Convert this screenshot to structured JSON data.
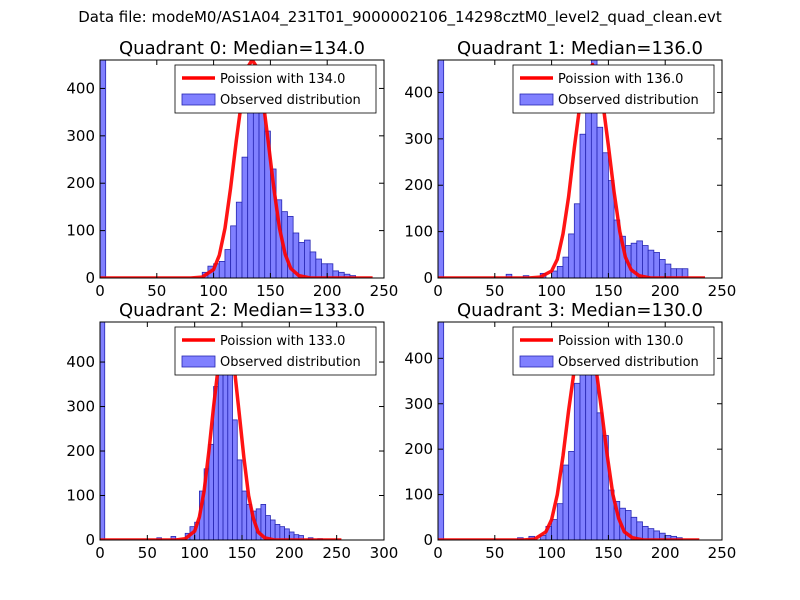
{
  "figure": {
    "title": "Data file: modeM0/AS1A04_231T01_9000002106_14298cztM0_level2_quad_clean.evt"
  },
  "colors": {
    "hist_fill": "#8080ff",
    "hist_edge": "#2626b3",
    "poisson_line": "#ff0000",
    "poisson_line_light": "#f4a0a0"
  },
  "chart_data": [
    {
      "type": "bar",
      "title": "Quadrant 0: Median=134.0",
      "median": 134.0,
      "legend": [
        "Poission with 134.0",
        "Observed distribution"
      ],
      "xlim": [
        0,
        250
      ],
      "ylim": [
        0,
        460
      ],
      "xticks": [
        0,
        50,
        100,
        150,
        200,
        250
      ],
      "yticks": [
        0,
        100,
        200,
        300,
        400
      ],
      "bin_width": 5,
      "bins": [
        [
          0,
          460
        ],
        [
          90,
          12
        ],
        [
          95,
          25
        ],
        [
          100,
          30
        ],
        [
          105,
          35
        ],
        [
          110,
          60
        ],
        [
          115,
          110
        ],
        [
          120,
          160
        ],
        [
          125,
          255
        ],
        [
          130,
          440
        ],
        [
          135,
          435
        ],
        [
          140,
          355
        ],
        [
          145,
          310
        ],
        [
          150,
          230
        ],
        [
          155,
          165
        ],
        [
          160,
          140
        ],
        [
          165,
          130
        ],
        [
          170,
          95
        ],
        [
          175,
          75
        ],
        [
          180,
          80
        ],
        [
          185,
          55
        ],
        [
          190,
          40
        ],
        [
          195,
          30
        ],
        [
          200,
          30
        ],
        [
          205,
          15
        ],
        [
          210,
          12
        ],
        [
          215,
          8
        ],
        [
          220,
          5
        ]
      ],
      "poisson_x": [
        0,
        80,
        90,
        100,
        105,
        110,
        115,
        120,
        125,
        130,
        134,
        138,
        143,
        148,
        153,
        158,
        163,
        168,
        175,
        185,
        200,
        240
      ],
      "poisson_y": [
        0,
        0,
        2,
        18,
        48,
        105,
        190,
        290,
        380,
        445,
        460,
        445,
        385,
        290,
        190,
        105,
        50,
        20,
        5,
        0,
        0,
        0
      ]
    },
    {
      "type": "bar",
      "title": "Quadrant 1: Median=136.0",
      "median": 136.0,
      "legend": [
        "Poission with 136.0",
        "Observed distribution"
      ],
      "xlim": [
        0,
        250
      ],
      "ylim": [
        0,
        470
      ],
      "xticks": [
        0,
        50,
        100,
        150,
        200,
        250
      ],
      "yticks": [
        0,
        100,
        200,
        300,
        400
      ],
      "bin_width": 5,
      "bins": [
        [
          0,
          470
        ],
        [
          60,
          8
        ],
        [
          75,
          5
        ],
        [
          90,
          10
        ],
        [
          100,
          15
        ],
        [
          105,
          25
        ],
        [
          110,
          45
        ],
        [
          115,
          95
        ],
        [
          120,
          160
        ],
        [
          125,
          310
        ],
        [
          130,
          385
        ],
        [
          135,
          470
        ],
        [
          140,
          325
        ],
        [
          145,
          270
        ],
        [
          150,
          210
        ],
        [
          155,
          125
        ],
        [
          160,
          90
        ],
        [
          165,
          70
        ],
        [
          170,
          75
        ],
        [
          175,
          80
        ],
        [
          180,
          70
        ],
        [
          185,
          60
        ],
        [
          190,
          55
        ],
        [
          195,
          40
        ],
        [
          200,
          30
        ],
        [
          205,
          20
        ],
        [
          210,
          20
        ],
        [
          215,
          20
        ]
      ],
      "poisson_x": [
        0,
        80,
        90,
        100,
        105,
        110,
        115,
        120,
        125,
        130,
        136,
        140,
        145,
        150,
        155,
        160,
        165,
        170,
        177,
        187,
        200,
        235
      ],
      "poisson_y": [
        0,
        0,
        2,
        15,
        40,
        95,
        175,
        280,
        375,
        440,
        460,
        440,
        380,
        285,
        185,
        100,
        45,
        18,
        5,
        0,
        0,
        0
      ]
    },
    {
      "type": "bar",
      "title": "Quadrant 2: Median=133.0",
      "median": 133.0,
      "legend": [
        "Poission with 133.0",
        "Observed distribution"
      ],
      "xlim": [
        0,
        300
      ],
      "ylim": [
        0,
        490
      ],
      "xticks": [
        0,
        50,
        100,
        150,
        200,
        250,
        300
      ],
      "yticks": [
        0,
        100,
        200,
        300,
        400
      ],
      "bin_width": 5,
      "bins": [
        [
          0,
          490
        ],
        [
          60,
          5
        ],
        [
          75,
          8
        ],
        [
          90,
          15
        ],
        [
          95,
          30
        ],
        [
          100,
          40
        ],
        [
          105,
          110
        ],
        [
          110,
          160
        ],
        [
          115,
          215
        ],
        [
          120,
          345
        ],
        [
          125,
          450
        ],
        [
          130,
          430
        ],
        [
          135,
          395
        ],
        [
          140,
          270
        ],
        [
          145,
          180
        ],
        [
          150,
          110
        ],
        [
          155,
          80
        ],
        [
          160,
          65
        ],
        [
          165,
          70
        ],
        [
          170,
          80
        ],
        [
          175,
          55
        ],
        [
          180,
          45
        ],
        [
          185,
          35
        ],
        [
          190,
          30
        ],
        [
          195,
          25
        ],
        [
          200,
          18
        ],
        [
          205,
          12
        ],
        [
          210,
          10
        ],
        [
          220,
          5
        ],
        [
          230,
          3
        ]
      ],
      "poisson_x": [
        0,
        80,
        90,
        100,
        105,
        110,
        115,
        120,
        125,
        130,
        133,
        137,
        142,
        147,
        152,
        157,
        162,
        167,
        174,
        184,
        200,
        255
      ],
      "poisson_y": [
        0,
        0,
        3,
        20,
        52,
        110,
        200,
        300,
        390,
        455,
        470,
        450,
        385,
        285,
        185,
        100,
        48,
        18,
        5,
        0,
        0,
        0
      ]
    },
    {
      "type": "bar",
      "title": "Quadrant 3: Median=130.0",
      "median": 130.0,
      "legend": [
        "Poission with 130.0",
        "Observed distribution"
      ],
      "xlim": [
        0,
        250
      ],
      "ylim": [
        0,
        480
      ],
      "xticks": [
        0,
        50,
        100,
        150,
        200,
        250
      ],
      "yticks": [
        0,
        100,
        200,
        300,
        400
      ],
      "bin_width": 5,
      "bins": [
        [
          0,
          480
        ],
        [
          70,
          5
        ],
        [
          80,
          8
        ],
        [
          90,
          10
        ],
        [
          95,
          30
        ],
        [
          100,
          45
        ],
        [
          105,
          80
        ],
        [
          110,
          165
        ],
        [
          115,
          195
        ],
        [
          120,
          345
        ],
        [
          125,
          400
        ],
        [
          130,
          465
        ],
        [
          135,
          400
        ],
        [
          140,
          280
        ],
        [
          145,
          230
        ],
        [
          150,
          110
        ],
        [
          155,
          85
        ],
        [
          160,
          70
        ],
        [
          165,
          65
        ],
        [
          170,
          50
        ],
        [
          175,
          40
        ],
        [
          180,
          30
        ],
        [
          185,
          25
        ],
        [
          190,
          20
        ],
        [
          195,
          15
        ],
        [
          200,
          10
        ],
        [
          205,
          8
        ],
        [
          210,
          5
        ]
      ],
      "poisson_x": [
        0,
        75,
        85,
        95,
        100,
        105,
        110,
        115,
        120,
        125,
        130,
        134,
        139,
        144,
        149,
        154,
        159,
        164,
        171,
        181,
        200,
        230
      ],
      "poisson_y": [
        0,
        0,
        2,
        18,
        45,
        100,
        185,
        285,
        375,
        440,
        460,
        440,
        380,
        285,
        185,
        100,
        48,
        18,
        5,
        0,
        0,
        0
      ]
    }
  ]
}
